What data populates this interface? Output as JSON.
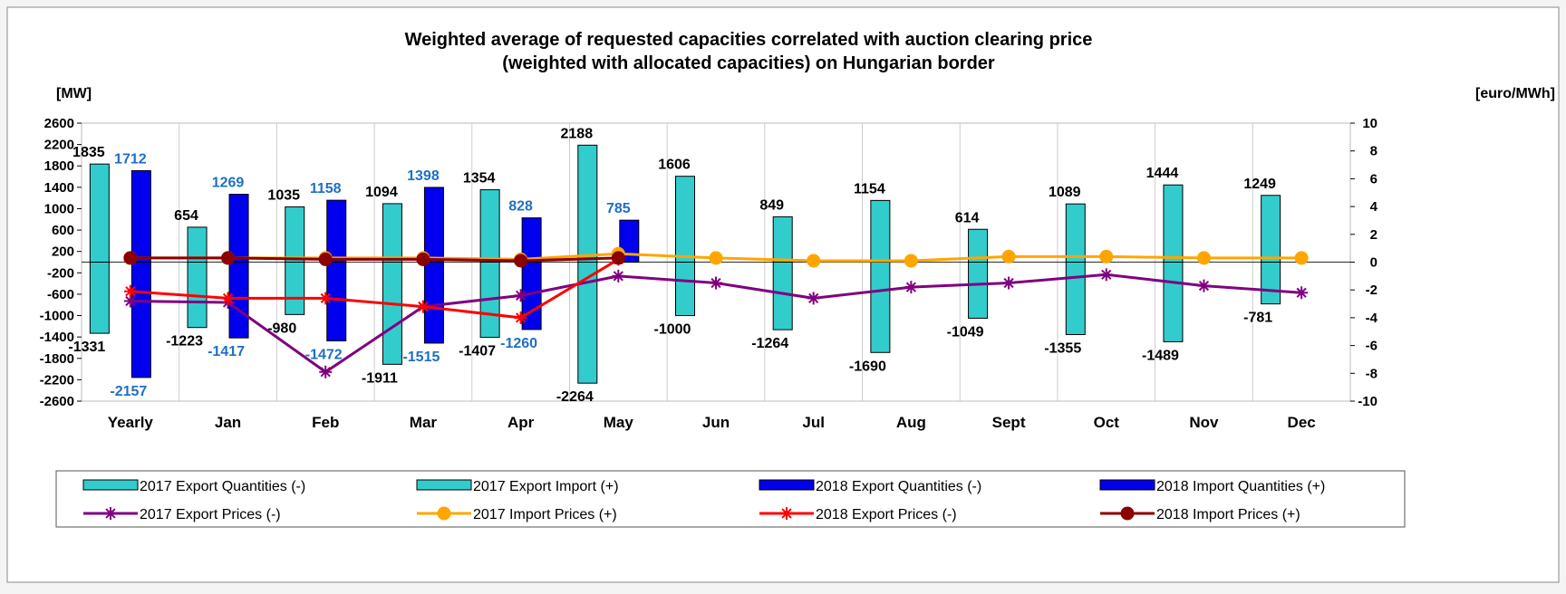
{
  "chart_data": {
    "type": "bar",
    "title": "Weighted average of requested capacities correlated with auction clearing price",
    "subtitle": "(weighted with allocated capacities) on Hungarian border",
    "ylabel_left": "[MW]",
    "ylabel_right": "[euro/MWh]",
    "ylim_left": [
      -2600,
      2600
    ],
    "yticks_left": [
      "2600",
      "2200",
      "1800",
      "1400",
      "1000",
      "600",
      "200",
      "-200",
      "-600",
      "-1000",
      "-1400",
      "-1800",
      "-2200",
      "-2600"
    ],
    "ylim_right": [
      -10,
      10
    ],
    "yticks_right": [
      "10",
      "8",
      "6",
      "4",
      "2",
      "0",
      "-2",
      "-4",
      "-6",
      "-8",
      "-10"
    ],
    "grid": "vertical",
    "legend_position": "bottom",
    "categories": [
      "Yearly",
      "Jan",
      "Feb",
      "Mar",
      "Apr",
      "May",
      "Jun",
      "Jul",
      "Aug",
      "Sept",
      "Oct",
      "Nov",
      "Dec"
    ],
    "bar_series": [
      {
        "name": "2017 Export Quantities (-)",
        "color": "#33cccc",
        "values": [
          -1331,
          -1223,
          -980,
          -1911,
          -1407,
          -2264,
          -1000,
          -1264,
          -1690,
          -1049,
          -1355,
          -1489,
          -781
        ],
        "labels": [
          "-1331",
          "-1223",
          "-980",
          "-1911",
          "-1407",
          "-2264",
          "-1000",
          "-1264",
          "-1690",
          "-1049",
          "-1355",
          "-1489",
          "-781"
        ]
      },
      {
        "name": "2017 Export Import  (+)",
        "color": "#33cccc",
        "values": [
          1835,
          654,
          1035,
          1094,
          1354,
          2188,
          1606,
          849,
          1154,
          614,
          1089,
          1444,
          1249
        ],
        "labels": [
          "1835",
          "654",
          "1035",
          "1094",
          "1354",
          "2188",
          "1606",
          "849",
          "1154",
          "614",
          "1089",
          "1444",
          "1249"
        ]
      },
      {
        "name": "2018 Export Quantities  (-)",
        "color": "#0000ee",
        "values": [
          -2157,
          -1417,
          -1472,
          -1515,
          -1260,
          null,
          null,
          null,
          null,
          null,
          null,
          null,
          null
        ],
        "labels": [
          "-2157",
          "-1417",
          "-1472",
          "-1515",
          "-1260",
          "",
          "",
          "",
          "",
          "",
          "",
          "",
          ""
        ]
      },
      {
        "name": "2018 Import Quantities (+)",
        "color": "#0000ee",
        "values": [
          1712,
          1269,
          1158,
          1398,
          828,
          785,
          null,
          null,
          null,
          null,
          null,
          null,
          null
        ],
        "labels": [
          "1712",
          "1269",
          "1158",
          "1398",
          "828",
          "785",
          "",
          "",
          "",
          "",
          "",
          "",
          ""
        ]
      }
    ],
    "line_series": [
      {
        "name": "2017 Export Prices (-)",
        "color": "#800080",
        "marker": "star",
        "values": [
          -2.8,
          -2.9,
          -7.9,
          -3.2,
          -2.4,
          -1.0,
          -1.5,
          -2.6,
          -1.8,
          -1.5,
          -0.9,
          -1.7,
          -2.2
        ]
      },
      {
        "name": "2017 Import  Prices (+)",
        "color": "#ffa500",
        "marker": "circle",
        "values": [
          0.3,
          0.3,
          0.3,
          0.3,
          0.2,
          0.6,
          0.3,
          0.1,
          0.1,
          0.4,
          0.4,
          0.3,
          0.3
        ]
      },
      {
        "name": "2018 Export Prices (-)",
        "color": "#ff0000",
        "marker": "star",
        "values": [
          -2.1,
          -2.6,
          -2.6,
          -3.2,
          -4.0,
          0.2,
          null,
          null,
          null,
          null,
          null,
          null,
          null
        ]
      },
      {
        "name": "2018 Import  Prices (+)",
        "color": "#8b0000",
        "marker": "circle",
        "values": [
          0.3,
          0.3,
          0.2,
          0.2,
          0.1,
          0.3,
          null,
          null,
          null,
          null,
          null,
          null,
          null
        ]
      }
    ],
    "label_colors": {
      "y2017": "#000000",
      "y2018": "#1f6fc5"
    }
  }
}
